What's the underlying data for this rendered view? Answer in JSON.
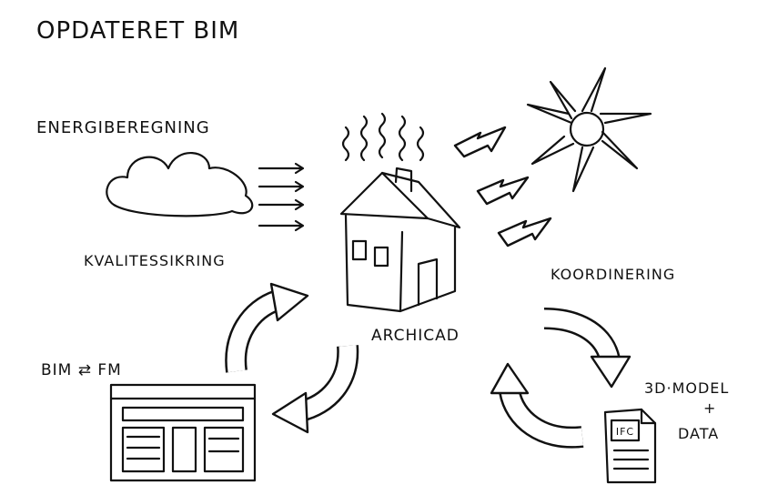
{
  "header": {
    "title": "OPDATERET BIM"
  },
  "nodes": [
    {
      "label": "ENERGIBEREGNING"
    },
    {
      "label": "KVALITESSIKRING"
    },
    {
      "label": "ARCHICAD"
    },
    {
      "label": "KOORDINERING"
    },
    {
      "label": "BIM ⇄ FM"
    },
    {
      "label_lines": [
        "3D·MODEL",
        "+",
        "DATA"
      ]
    },
    {
      "label": "IFC"
    }
  ]
}
